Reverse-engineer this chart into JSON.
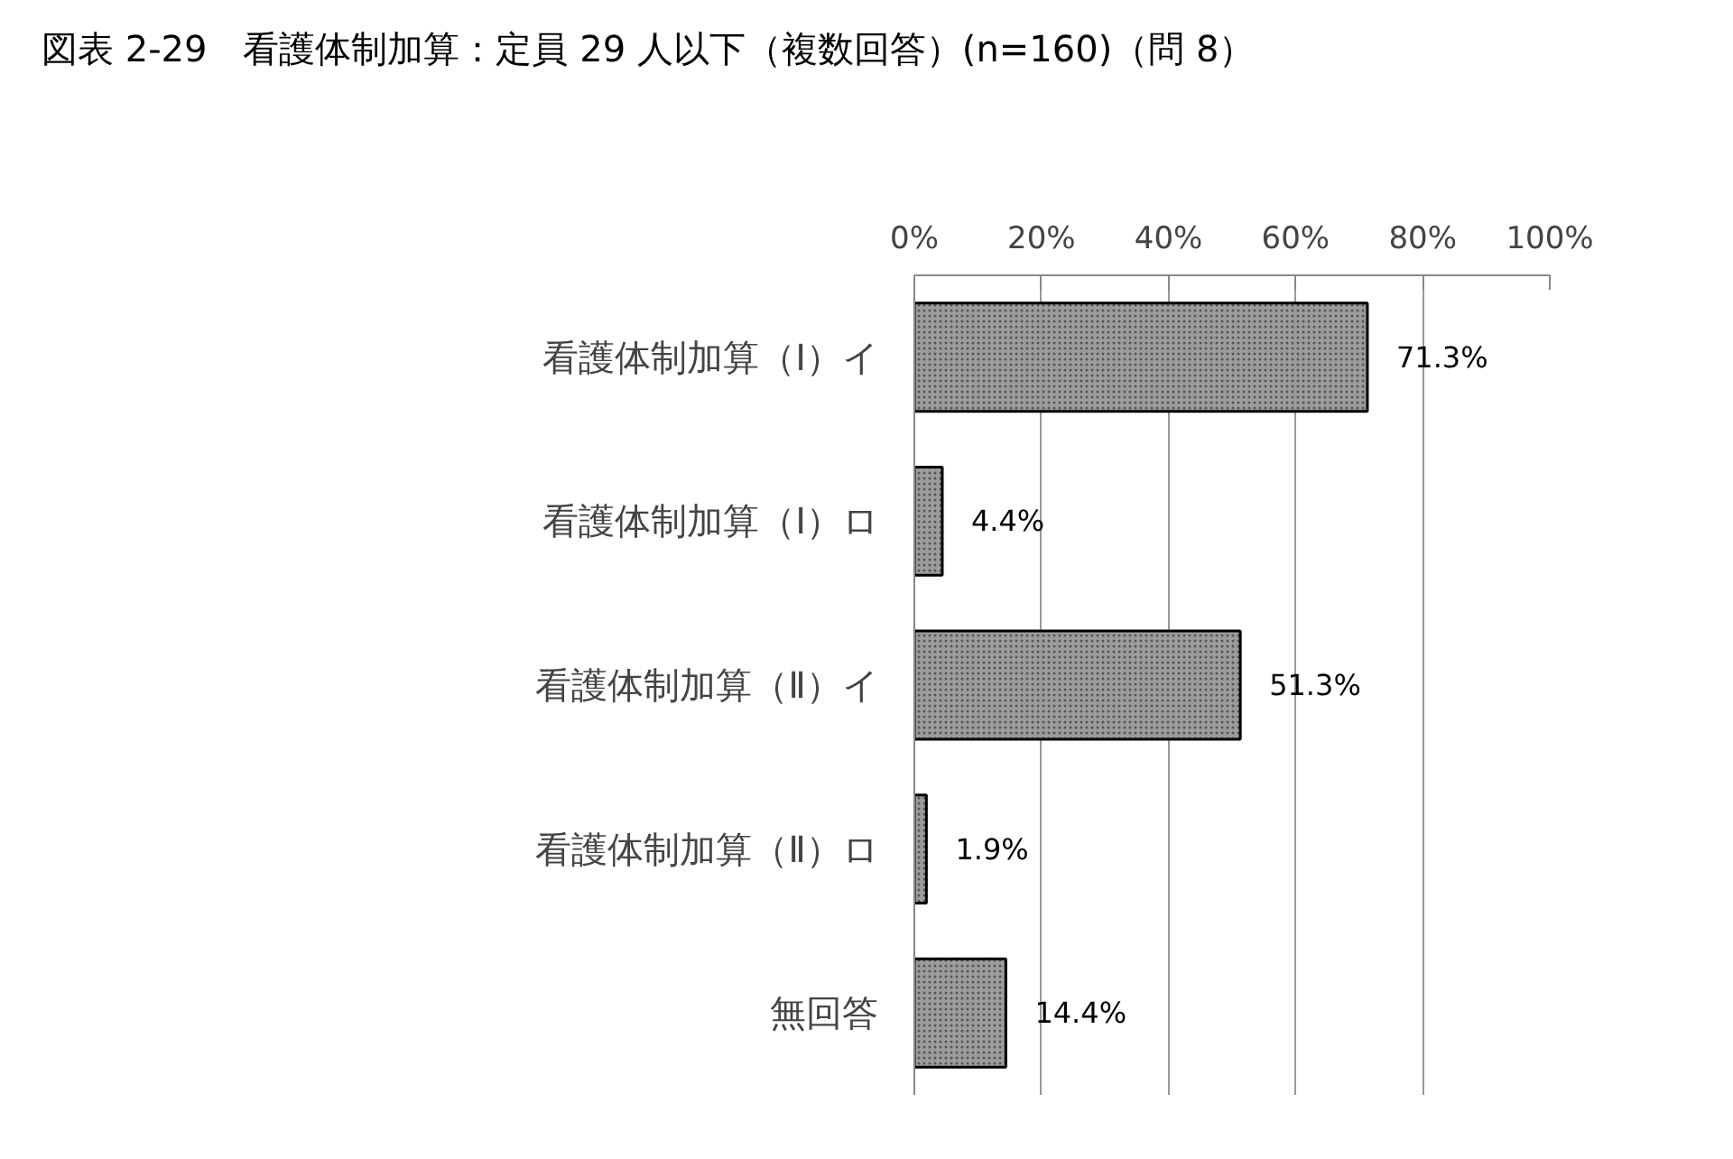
{
  "chart_data": {
    "type": "bar",
    "orientation": "horizontal",
    "title": "図表 2-29　看護体制加算：定員 29 人以下（複数回答）(n=160)（問 8）",
    "categories": [
      "看護体制加算（Ⅰ）イ",
      "看護体制加算（Ⅰ）ロ",
      "看護体制加算（Ⅱ）イ",
      "看護体制加算（Ⅱ）ロ",
      "無回答"
    ],
    "values": [
      71.3,
      4.4,
      51.3,
      1.9,
      14.4
    ],
    "value_labels": [
      "71.3%",
      "4.4%",
      "51.3%",
      "1.9%",
      "14.4%"
    ],
    "color": "#9c9c9c",
    "xlim": [
      0,
      100
    ],
    "xticks": [
      {
        "value": 0,
        "label": "0%"
      },
      {
        "value": 20,
        "label": "20%"
      },
      {
        "value": 40,
        "label": "40%"
      },
      {
        "value": 60,
        "label": "60%"
      },
      {
        "value": 80,
        "label": "80%"
      },
      {
        "value": 100,
        "label": "100%"
      }
    ],
    "grid": "x"
  }
}
